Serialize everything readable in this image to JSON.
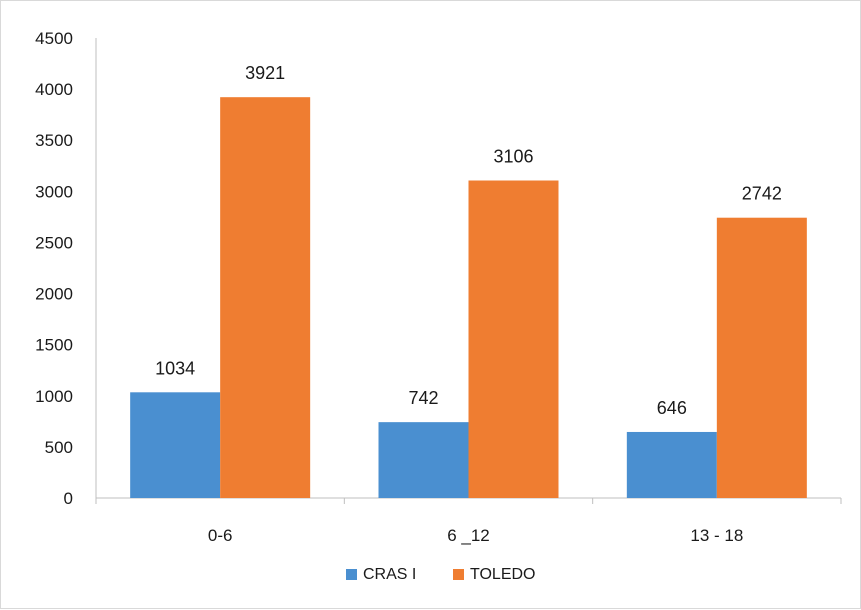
{
  "chart_data": {
    "type": "bar",
    "title": "",
    "xlabel": "",
    "ylabel": "",
    "categories": [
      "0-6",
      "6 _12",
      "13 - 18"
    ],
    "series": [
      {
        "name": "CRAS I",
        "values": [
          1034,
          742,
          646
        ],
        "color": "#4a8fd0"
      },
      {
        "name": "TOLEDO",
        "values": [
          3921,
          3106,
          2742
        ],
        "color": "#ef7d31"
      }
    ],
    "ylim": [
      0,
      4500
    ],
    "yticks": [
      0,
      500,
      1000,
      1500,
      2000,
      2500,
      3000,
      3500,
      4000,
      4500
    ],
    "grid": false,
    "legend_position": "bottom",
    "data_labels": true
  }
}
